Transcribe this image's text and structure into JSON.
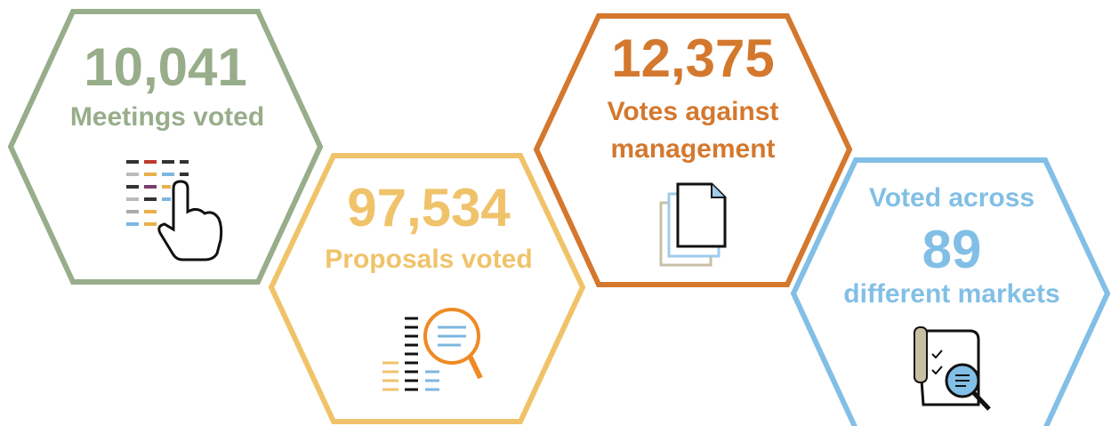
{
  "hexagons": [
    {
      "value": "10,041",
      "label": [
        "Meetings voted"
      ]
    },
    {
      "value": "97,534",
      "label": [
        "Proposals voted"
      ]
    },
    {
      "value": "12,375",
      "label": [
        "Votes against",
        "management"
      ]
    },
    {
      "label_before": "Voted across",
      "value": "89",
      "label": [
        "different markets"
      ]
    }
  ]
}
